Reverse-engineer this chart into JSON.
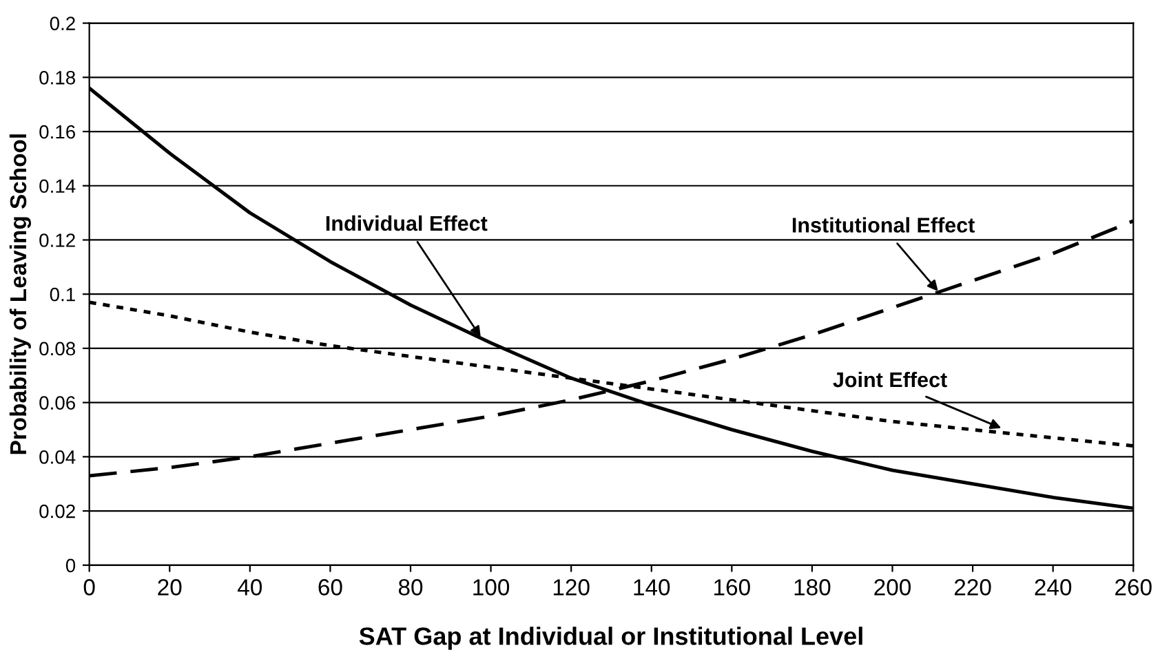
{
  "chart_data": {
    "type": "line",
    "xlabel": "SAT Gap at Individual or Institutional Level",
    "ylabel": "Probability of Leaving School",
    "x": [
      0,
      20,
      40,
      60,
      80,
      100,
      120,
      140,
      160,
      180,
      200,
      220,
      240,
      260
    ],
    "series": [
      {
        "color": "#000000",
        "line_style": "solid",
        "values": [
          0.176,
          0.152,
          0.13,
          0.112,
          0.096,
          0.082,
          0.069,
          0.059,
          0.05,
          0.042,
          0.035,
          0.03,
          0.025,
          0.021
        ]
      },
      {
        "color": "#000000",
        "line_style": "dashed",
        "values": [
          0.033,
          0.036,
          0.04,
          0.045,
          0.05,
          0.055,
          0.061,
          0.068,
          0.076,
          0.085,
          0.095,
          0.105,
          0.115,
          0.127
        ]
      },
      {
        "color": "#000000",
        "line_style": "dotted",
        "values": [
          0.097,
          0.092,
          0.086,
          0.081,
          0.077,
          0.073,
          0.069,
          0.065,
          0.061,
          0.057,
          0.053,
          0.05,
          0.047,
          0.044
        ]
      }
    ],
    "annotations": [
      {
        "text": "Individual Effect",
        "x": 98,
        "y": 0.083
      },
      {
        "text": "Institutional Effect",
        "x": 212,
        "y": 0.1
      },
      {
        "text": "Joint Effect",
        "x": 228,
        "y": 0.05
      }
    ],
    "xlim": [
      0,
      260
    ],
    "ylim": [
      0,
      0.2
    ],
    "xticks": [
      0,
      20,
      40,
      60,
      80,
      100,
      120,
      140,
      160,
      180,
      200,
      220,
      240,
      260
    ],
    "yticks": [
      0,
      0.02,
      0.04,
      0.06,
      0.08,
      0.1,
      0.12,
      0.14,
      0.16,
      0.18,
      0.2
    ],
    "grid": "y",
    "legend": false,
    "marker": "none"
  }
}
